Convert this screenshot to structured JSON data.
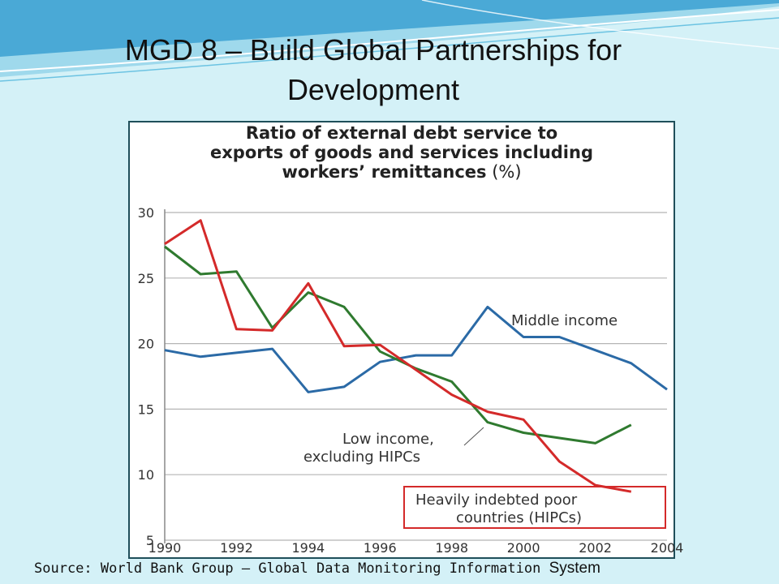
{
  "slide": {
    "title_line1": "MGD 8 – Build Global Partnerships for",
    "title_line2": "Development",
    "source_text": "Source: World Bank Group – Global Data Monitoring Information",
    "source_tail": "System",
    "colors": {
      "background": "#d4f1f7",
      "swoosh": "#4aa9d6",
      "frame": "#1f4f5a"
    }
  },
  "chart_data": {
    "type": "line",
    "title": "Ratio of external debt service to exports of goods and services including workers’ remittances",
    "title_lines": [
      "Ratio of external debt service to",
      "exports of goods and services including",
      "workers’ remittances"
    ],
    "title_unit": "(%)",
    "xlabel": "",
    "ylabel": "",
    "xlim": [
      1990,
      2004
    ],
    "ylim": [
      5,
      30
    ],
    "x_ticks": [
      1990,
      1992,
      1994,
      1996,
      1998,
      2000,
      2002,
      2004
    ],
    "y_ticks": [
      5,
      10,
      15,
      20,
      25,
      30
    ],
    "grid": "horizontal",
    "x": [
      1990,
      1991,
      1992,
      1993,
      1994,
      1995,
      1996,
      1997,
      1998,
      1999,
      2000,
      2001,
      2002,
      2003,
      2004
    ],
    "series": [
      {
        "name": "Middle income",
        "color": "#2b6aa6",
        "x": [
          1990,
          1991,
          1992,
          1993,
          1994,
          1995,
          1996,
          1997,
          1998,
          1999,
          2000,
          2001,
          2002,
          2003,
          2004
        ],
        "values": [
          19.5,
          19.0,
          19.3,
          19.6,
          16.3,
          16.7,
          18.6,
          19.1,
          19.1,
          22.8,
          20.5,
          20.5,
          19.5,
          18.5,
          16.5
        ]
      },
      {
        "name": "Low income, excluding HIPCs",
        "label_lines": [
          "Low income,",
          "excluding HIPCs"
        ],
        "color": "#2f7a2f",
        "x": [
          1990,
          1991,
          1992,
          1993,
          1994,
          1995,
          1996,
          1997,
          1998,
          1999,
          2000,
          2001,
          2002,
          2003
        ],
        "values": [
          27.4,
          25.3,
          25.5,
          21.2,
          23.9,
          22.8,
          19.4,
          18.1,
          17.1,
          14.0,
          13.2,
          12.8,
          12.4,
          13.8
        ]
      },
      {
        "name": "Heavily indebted poor countries (HIPCs)",
        "label_lines": [
          "Heavily indebted poor",
          "countries (HIPCs)"
        ],
        "color": "#d42a2a",
        "x": [
          1990,
          1991,
          1992,
          1993,
          1994,
          1995,
          1996,
          1997,
          1998,
          1999,
          2000,
          2001,
          2002,
          2003
        ],
        "values": [
          27.6,
          29.4,
          21.1,
          21.0,
          24.6,
          19.8,
          19.9,
          18.0,
          16.1,
          14.8,
          14.2,
          11.0,
          9.2,
          8.7
        ]
      }
    ]
  }
}
